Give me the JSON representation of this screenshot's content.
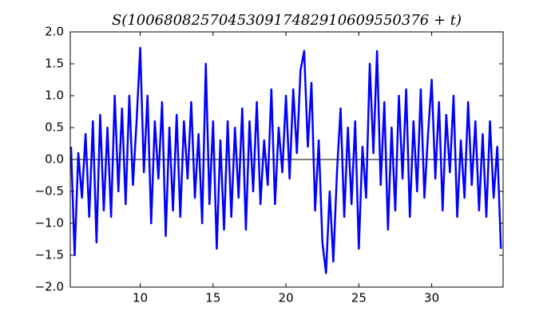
{
  "chart_data": {
    "type": "line",
    "title": "S(100680825704530917482910609550376 + t)",
    "color": "#0000ff",
    "hline": 0,
    "xlim": [
      5.2,
      34.9
    ],
    "ylim": [
      -2,
      2
    ],
    "xticks": [
      10,
      15,
      20,
      25,
      30
    ],
    "yticks": [
      {
        "value": -2,
        "label": "−2.0"
      },
      {
        "value": -1.5,
        "label": "−1.5"
      },
      {
        "value": -1,
        "label": "−1.0"
      },
      {
        "value": -0.5,
        "label": "−0.5"
      },
      {
        "value": 0,
        "label": "0.0"
      },
      {
        "value": 0.5,
        "label": "0.5"
      },
      {
        "value": 1,
        "label": "1.0"
      },
      {
        "value": 1.5,
        "label": "1.5"
      },
      {
        "value": 2,
        "label": "2.0"
      }
    ],
    "x": [
      5.25,
      5.5,
      5.75,
      6,
      6.25,
      6.5,
      6.75,
      7,
      7.25,
      7.5,
      7.75,
      8,
      8.25,
      8.5,
      8.75,
      9,
      9.25,
      9.5,
      9.75,
      10,
      10.25,
      10.5,
      10.75,
      11,
      11.25,
      11.5,
      11.75,
      12,
      12.25,
      12.5,
      12.75,
      13,
      13.25,
      13.5,
      13.75,
      14,
      14.25,
      14.5,
      14.75,
      15,
      15.25,
      15.5,
      15.75,
      16,
      16.25,
      16.5,
      16.75,
      17,
      17.25,
      17.5,
      17.75,
      18,
      18.25,
      18.5,
      18.75,
      19,
      19.25,
      19.5,
      19.75,
      20,
      20.25,
      20.5,
      20.75,
      21,
      21.25,
      21.5,
      21.75,
      22,
      22.25,
      22.5,
      22.75,
      23,
      23.25,
      23.5,
      23.75,
      24,
      24.25,
      24.5,
      24.75,
      25,
      25.25,
      25.5,
      25.75,
      26,
      26.25,
      26.5,
      26.75,
      27,
      27.25,
      27.5,
      27.75,
      28,
      28.25,
      28.5,
      28.75,
      29,
      29.25,
      29.5,
      29.75,
      30,
      30.25,
      30.5,
      30.75,
      31,
      31.25,
      31.5,
      31.75,
      32,
      32.25,
      32.5,
      32.75,
      33,
      33.25,
      33.5,
      33.75,
      34,
      34.25,
      34.5,
      34.75
    ],
    "values": [
      0.2,
      -1.5,
      0.1,
      -0.6,
      0.4,
      -0.9,
      0.6,
      -1.3,
      0.7,
      -0.8,
      0.5,
      -0.9,
      1.0,
      -0.5,
      0.8,
      -0.7,
      1.0,
      -0.4,
      0.6,
      1.75,
      -0.2,
      1.0,
      -1.0,
      0.6,
      -0.3,
      0.9,
      -1.2,
      0.5,
      -0.8,
      0.7,
      -0.9,
      0.6,
      -0.3,
      0.9,
      -0.6,
      0.4,
      -1.0,
      1.5,
      -0.7,
      0.6,
      -1.4,
      0.3,
      -1.1,
      0.6,
      -0.9,
      0.5,
      -0.6,
      0.8,
      -1.1,
      0.6,
      -0.5,
      0.9,
      -0.7,
      0.3,
      -0.4,
      1.1,
      -0.7,
      0.5,
      -0.2,
      1.0,
      -0.3,
      1.1,
      0.1,
      1.4,
      1.7,
      0.2,
      1.2,
      -0.8,
      0.3,
      -1.3,
      -1.78,
      -0.5,
      -1.6,
      -0.2,
      0.8,
      -0.9,
      0.5,
      -0.7,
      0.6,
      -1.4,
      0.2,
      -0.6,
      1.5,
      0.1,
      1.7,
      -0.4,
      0.9,
      -1.1,
      0.5,
      -0.8,
      1.0,
      -0.3,
      1.1,
      -0.9,
      0.6,
      -0.5,
      1.1,
      -0.6,
      0.4,
      1.25,
      -0.3,
      0.9,
      -0.8,
      0.7,
      -0.2,
      1.0,
      -0.9,
      0.3,
      -0.6,
      0.9,
      -0.4,
      0.6,
      -0.8,
      0.4,
      -0.9,
      0.6,
      -0.6,
      0.2,
      -1.4
    ]
  }
}
